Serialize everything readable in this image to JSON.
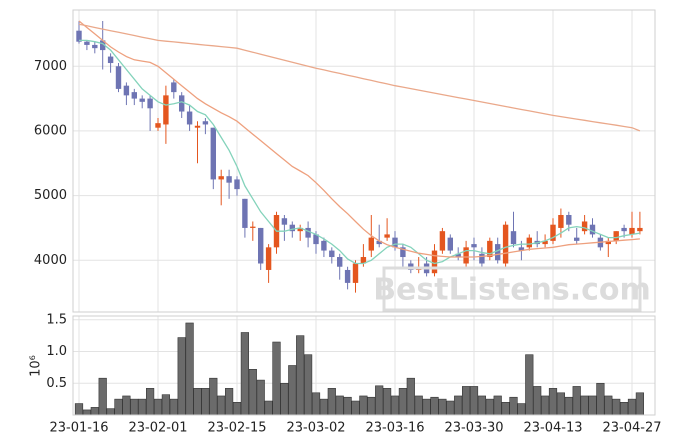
{
  "chart_data": {
    "type": "candlestick",
    "categories": [
      "23-01-16",
      null,
      null,
      null,
      null,
      null,
      null,
      null,
      null,
      null,
      "23-02-01",
      null,
      null,
      null,
      null,
      null,
      null,
      null,
      null,
      null,
      "23-02-15",
      null,
      null,
      null,
      null,
      null,
      null,
      null,
      null,
      null,
      "23-03-02",
      null,
      null,
      null,
      null,
      null,
      null,
      null,
      null,
      null,
      "23-03-16",
      null,
      null,
      null,
      null,
      null,
      null,
      null,
      null,
      null,
      "23-03-30",
      null,
      null,
      null,
      null,
      null,
      null,
      null,
      null,
      null,
      "23-04-13",
      null,
      null,
      null,
      null,
      null,
      null,
      null,
      null,
      null,
      "23-04-27",
      null
    ],
    "open": [
      7550,
      7380,
      7330,
      7400,
      7150,
      7000,
      6700,
      6600,
      6500,
      6500,
      6050,
      6100,
      6750,
      6550,
      6300,
      6050,
      6150,
      6050,
      5250,
      5300,
      5250,
      4950,
      4500,
      4500,
      3850,
      4200,
      4650,
      4550,
      4450,
      4500,
      4400,
      4300,
      4150,
      4050,
      3850,
      3650,
      3950,
      4150,
      4300,
      4350,
      4350,
      4200,
      3950,
      3850,
      3950,
      3800,
      4150,
      4350,
      4100,
      3950,
      4250,
      4100,
      4050,
      4250,
      3950,
      4450,
      4200,
      4200,
      4300,
      4250,
      4300,
      4500,
      4700,
      4350,
      4450,
      4550,
      4350,
      4250,
      4300,
      4500,
      4400,
      4450
    ],
    "high": [
      7700,
      7400,
      7380,
      7700,
      7200,
      7050,
      6750,
      6650,
      6550,
      6550,
      6200,
      6700,
      6800,
      6600,
      6400,
      6150,
      6200,
      6050,
      5400,
      5400,
      5300,
      4950,
      4600,
      4500,
      4250,
      4750,
      4700,
      4600,
      4550,
      4600,
      4450,
      4350,
      4200,
      4100,
      3900,
      4000,
      4250,
      4700,
      4550,
      4650,
      4450,
      4250,
      4000,
      4050,
      4050,
      4250,
      4500,
      4400,
      4200,
      4300,
      4350,
      4200,
      4350,
      4350,
      4600,
      4750,
      4300,
      4400,
      4450,
      4400,
      4650,
      4800,
      4750,
      4500,
      4700,
      4650,
      4400,
      4350,
      4450,
      4550,
      4750,
      4750
    ],
    "low": [
      7350,
      7250,
      7200,
      6950,
      6900,
      6600,
      6400,
      6400,
      6350,
      6000,
      6000,
      5800,
      6500,
      6200,
      6000,
      5500,
      5950,
      5100,
      4850,
      4950,
      5000,
      4350,
      4300,
      3850,
      3650,
      4100,
      4300,
      4350,
      4300,
      4200,
      4100,
      4050,
      3950,
      3700,
      3550,
      3500,
      3900,
      4050,
      4200,
      4300,
      4150,
      3900,
      3800,
      3800,
      3750,
      3750,
      4100,
      4100,
      4000,
      3900,
      4000,
      3900,
      4000,
      3950,
      3900,
      4200,
      4000,
      4150,
      4200,
      4200,
      4250,
      4350,
      4450,
      4250,
      4400,
      4350,
      4150,
      4050,
      4250,
      4350,
      4350,
      4400
    ],
    "close": [
      7380,
      7330,
      7280,
      7250,
      7050,
      6650,
      6550,
      6500,
      6450,
      6350,
      6120,
      6550,
      6600,
      6300,
      6100,
      6080,
      6100,
      5250,
      5300,
      5200,
      5100,
      4500,
      4520,
      3950,
      4200,
      4700,
      4550,
      4450,
      4500,
      4350,
      4250,
      4150,
      4050,
      3900,
      3650,
      3950,
      4050,
      4350,
      4250,
      4400,
      4200,
      4050,
      3850,
      3900,
      3800,
      4150,
      4450,
      4150,
      4050,
      4200,
      4200,
      3950,
      4300,
      4000,
      4550,
      4250,
      4150,
      4350,
      4250,
      4300,
      4550,
      4700,
      4550,
      4300,
      4600,
      4400,
      4200,
      4300,
      4450,
      4450,
      4500,
      4500
    ],
    "up_color": "#e4561f",
    "down_color": "#6e74b3",
    "series": [
      {
        "color": "#84d3bb",
        "values": [
          7400,
          7400,
          7380,
          7350,
          7250,
          7100,
          6950,
          6800,
          6650,
          6550,
          6450,
          6400,
          6420,
          6450,
          6400,
          6300,
          6250,
          6100,
          5900,
          5700,
          5450,
          5150,
          4950,
          4750,
          4600,
          4450,
          4450,
          4480,
          4500,
          4450,
          4400,
          4330,
          4250,
          4150,
          4020,
          3950,
          3950,
          4000,
          4100,
          4200,
          4250,
          4250,
          4200,
          4100,
          4000,
          3950,
          3980,
          4050,
          4100,
          4150,
          4150,
          4120,
          4100,
          4150,
          4200,
          4230,
          4250,
          4250,
          4270,
          4300,
          4350,
          4420,
          4500,
          4520,
          4500,
          4450,
          4400,
          4350,
          4350,
          4380,
          4400,
          4420
        ]
      },
      {
        "color": "#eea07e",
        "values": [
          7700,
          7600,
          7500,
          7400,
          7300,
          7220,
          7150,
          7100,
          7080,
          7060,
          7000,
          6900,
          6800,
          6700,
          6600,
          6500,
          6420,
          6350,
          6280,
          6220,
          6150,
          6050,
          5950,
          5850,
          5750,
          5650,
          5550,
          5450,
          5380,
          5310,
          5200,
          5080,
          4950,
          4830,
          4720,
          4600,
          4480,
          4380,
          4300,
          4240,
          4200,
          4170,
          4140,
          4110,
          4090,
          4070,
          4060,
          4050,
          4050,
          4050,
          4050,
          4060,
          4070,
          4090,
          4110,
          4130,
          4150,
          4170,
          4180,
          4190,
          4200,
          4220,
          4240,
          4250,
          4260,
          4270,
          4280,
          4290,
          4300,
          4310,
          4320,
          4330
        ]
      },
      {
        "color": "#eaa88a",
        "values": [
          7650,
          7625,
          7600,
          7575,
          7550,
          7525,
          7500,
          7475,
          7450,
          7425,
          7400,
          7388,
          7376,
          7364,
          7352,
          7340,
          7328,
          7316,
          7304,
          7292,
          7280,
          7249,
          7218,
          7187,
          7156,
          7125,
          7094,
          7063,
          7032,
          7001,
          6970,
          6943,
          6916,
          6889,
          6862,
          6835,
          6808,
          6781,
          6754,
          6727,
          6700,
          6677,
          6654,
          6631,
          6608,
          6585,
          6562,
          6539,
          6516,
          6493,
          6470,
          6447,
          6424,
          6401,
          6378,
          6355,
          6332,
          6309,
          6286,
          6263,
          6240,
          6221,
          6202,
          6183,
          6164,
          6145,
          6126,
          6107,
          6088,
          6069,
          6050,
          6000
        ]
      }
    ],
    "ylim": [
      3200,
      7870
    ],
    "yticks": [
      4000,
      5000,
      6000,
      7000
    ],
    "grid": true,
    "watermark": "BestListens.com",
    "volume": {
      "values": [
        0.18,
        0.08,
        0.12,
        0.58,
        0.1,
        0.25,
        0.3,
        0.25,
        0.25,
        0.42,
        0.25,
        0.32,
        0.25,
        1.22,
        1.45,
        0.42,
        0.42,
        0.58,
        0.3,
        0.42,
        0.2,
        1.3,
        0.72,
        0.55,
        0.22,
        1.15,
        0.5,
        0.78,
        1.25,
        0.95,
        0.35,
        0.25,
        0.42,
        0.3,
        0.28,
        0.22,
        0.3,
        0.28,
        0.46,
        0.42,
        0.3,
        0.42,
        0.58,
        0.3,
        0.25,
        0.28,
        0.25,
        0.22,
        0.3,
        0.45,
        0.45,
        0.3,
        0.25,
        0.3,
        0.2,
        0.28,
        0.18,
        0.95,
        0.45,
        0.3,
        0.42,
        0.35,
        0.28,
        0.45,
        0.3,
        0.3,
        0.5,
        0.3,
        0.25,
        0.2,
        0.25,
        0.35
      ],
      "color": "#6b6b6b",
      "ylim": [
        0,
        1.56
      ],
      "yticks": [
        0.5,
        {
          "value": 1,
          "label": "1.0"
        },
        1.5
      ],
      "ylabel": "10⁶"
    }
  }
}
